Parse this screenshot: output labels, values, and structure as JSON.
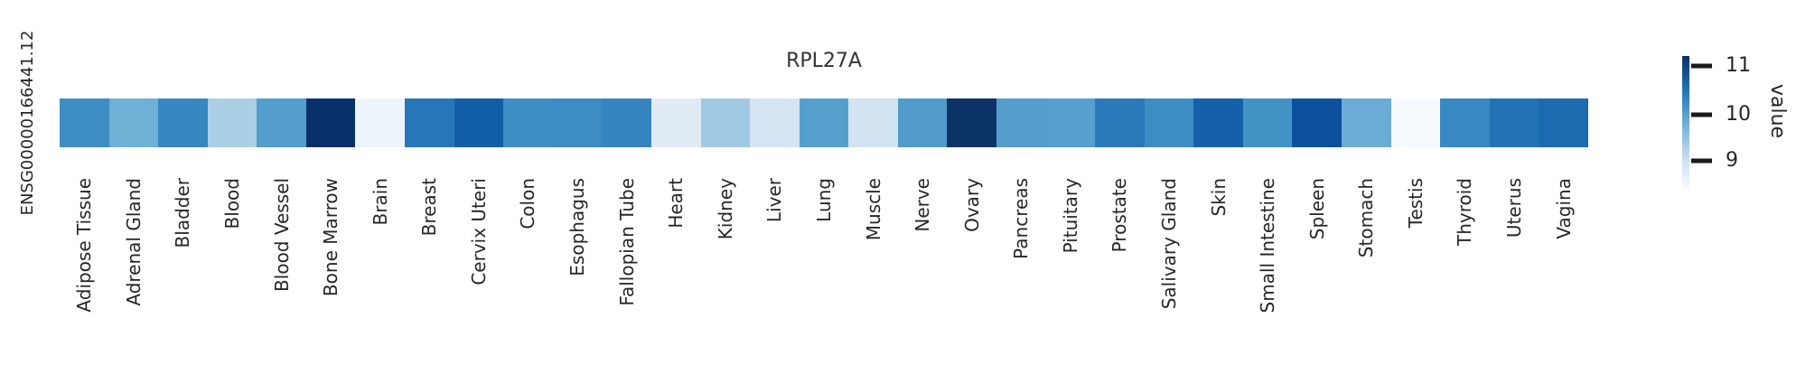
{
  "title": "RPL27A",
  "row_label": "ENSG00000166441.12",
  "colorbar": {
    "label": "value",
    "ticks": [
      11,
      10,
      9
    ],
    "gradient": [
      "#08306b",
      "#2171b5",
      "#6baed6",
      "#c6dbef",
      "#f7fbff"
    ]
  },
  "chart_data": {
    "type": "heatmap",
    "title": "RPL27A",
    "row": "ENSG00000166441.12",
    "colormap": "Blues",
    "value_range": [
      8.4,
      11.2
    ],
    "colorbar_label": "value",
    "colorbar_ticks": [
      9,
      10,
      11
    ],
    "legend_position": "right",
    "categories": [
      "Adipose Tissue",
      "Adrenal Gland",
      "Bladder",
      "Blood",
      "Blood Vessel",
      "Bone Marrow",
      "Brain",
      "Breast",
      "Cervix Uteri",
      "Colon",
      "Esophagus",
      "Fallopian Tube",
      "Heart",
      "Kidney",
      "Liver",
      "Lung",
      "Muscle",
      "Nerve",
      "Ovary",
      "Pancreas",
      "Pituitary",
      "Prostate",
      "Salivary Gland",
      "Skin",
      "Small Intestine",
      "Spleen",
      "Stomach",
      "Testis",
      "Thyroid",
      "Uterus",
      "Vagina"
    ],
    "values": [
      10.1,
      9.8,
      10.2,
      9.4,
      10.0,
      11.2,
      8.6,
      10.4,
      10.7,
      10.1,
      10.1,
      10.2,
      8.8,
      9.45,
      8.9,
      9.95,
      8.9,
      10.0,
      11.1,
      9.95,
      9.95,
      10.4,
      10.1,
      10.65,
      10.15,
      10.85,
      9.8,
      8.45,
      10.2,
      10.5,
      10.6
    ],
    "colors": [
      "#3e8ec4",
      "#6fb0d7",
      "#3787c0",
      "#abcfe5",
      "#549ecd",
      "#08306b",
      "#edf4fb",
      "#2776b9",
      "#135fa7",
      "#3e8ec4",
      "#3d8cc3",
      "#3585bf",
      "#e1ebf6",
      "#a0c8e2",
      "#d5e4f3",
      "#559fcd",
      "#d2e3f2",
      "#519bcb",
      "#0c3366",
      "#549dcc",
      "#569ecd",
      "#2b79ba",
      "#3e8ec4",
      "#1660a9",
      "#4292c6",
      "#0b519e",
      "#6cabd5",
      "#f6fafe",
      "#3888c1",
      "#2173b5",
      "#1c6bb0"
    ]
  }
}
